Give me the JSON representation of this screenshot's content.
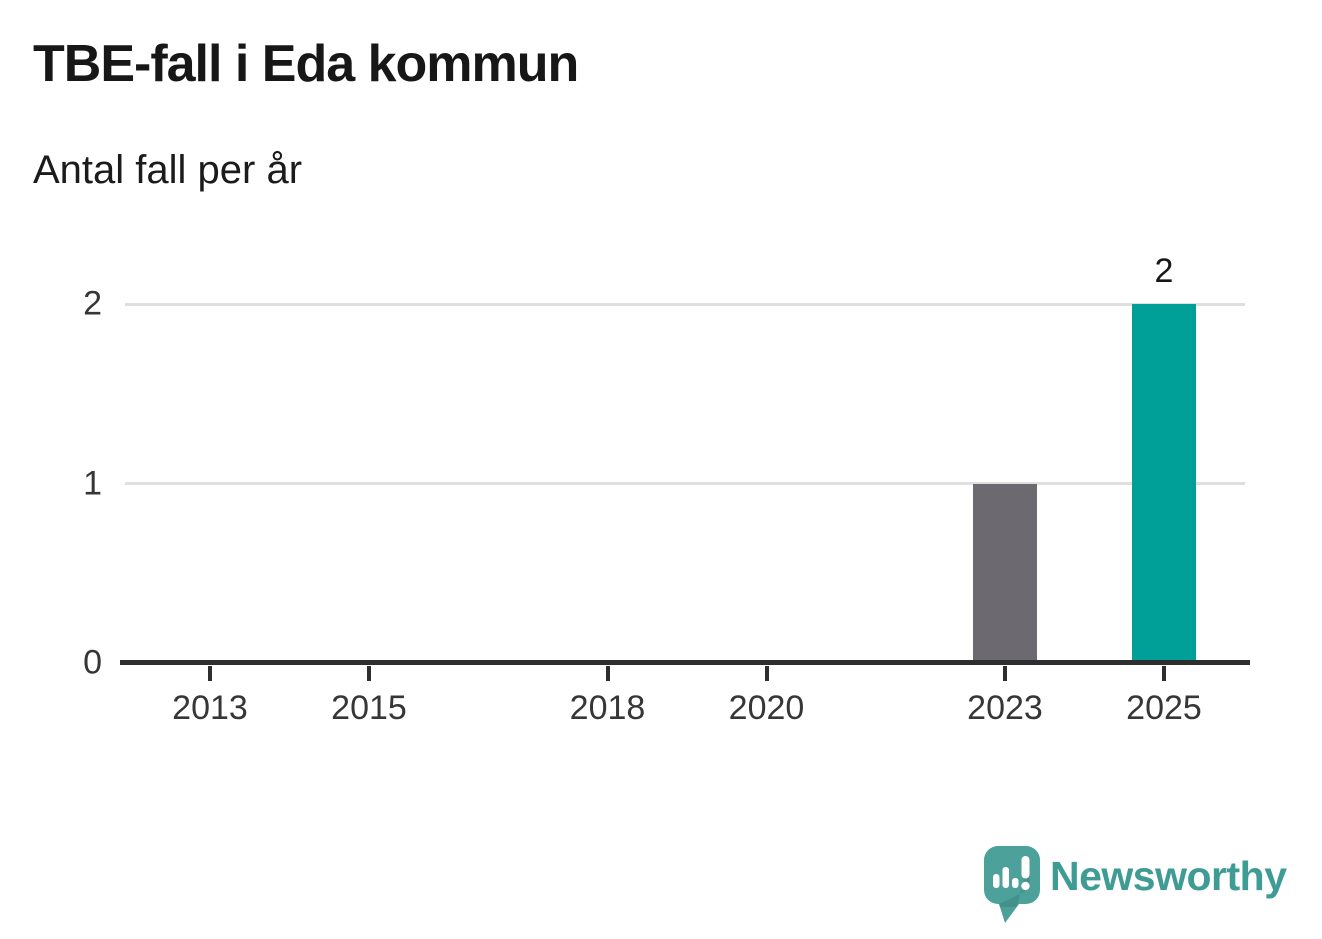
{
  "chart": {
    "title": "TBE-fall i Eda kommun",
    "subtitle": "Antal fall per år"
  },
  "chart_data": {
    "type": "bar",
    "title": "TBE-fall i Eda kommun",
    "subtitle": "Antal fall per år",
    "xlabel": "",
    "ylabel": "Antal fall per år",
    "categories": [
      2023,
      2025
    ],
    "values": [
      1,
      2
    ],
    "bar_colors": [
      "#6c6a70",
      "#00a098"
    ],
    "x_axis_ticks": [
      2013,
      2015,
      2018,
      2020,
      2023,
      2025
    ],
    "y_ticks": [
      0,
      1,
      2
    ],
    "ylim": [
      0,
      2
    ],
    "xlim": [
      2012.4,
      2025.6
    ],
    "grid": true,
    "legend": "none",
    "annotations": [
      {
        "category": 2025,
        "value": 2,
        "label": "2"
      }
    ]
  },
  "branding": {
    "logo_text": "Newsworthy",
    "logo_text_color": "#3f9c95",
    "logo_bubble_color": "#4ca29b"
  },
  "colors": {
    "background": "#ffffff",
    "title": "#171717",
    "axis_labels": "#363636",
    "gridline": "#dfdfdf",
    "axis_line": "#2e2e2e",
    "value_label": "#171717"
  }
}
